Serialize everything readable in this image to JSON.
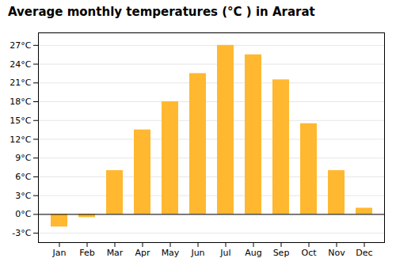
{
  "chart_data": {
    "type": "bar",
    "title": "Average monthly temperatures (°C ) in Ararat",
    "categories": [
      "Jan",
      "Feb",
      "Mar",
      "Apr",
      "May",
      "Jun",
      "Jul",
      "Aug",
      "Sep",
      "Oct",
      "Nov",
      "Dec"
    ],
    "values": [
      -2.0,
      -0.5,
      7.0,
      13.5,
      18.0,
      22.5,
      27.0,
      25.5,
      21.5,
      14.5,
      7.0,
      1.0
    ],
    "color": "#FFB830",
    "ylim": [
      -4.5,
      29
    ],
    "yticks": [
      {
        "value": -3,
        "label": "-3°C"
      },
      {
        "value": 0,
        "label": "0°C"
      },
      {
        "value": 3,
        "label": "3°C"
      },
      {
        "value": 6,
        "label": "6°C"
      },
      {
        "value": 9,
        "label": "9°C"
      },
      {
        "value": 12,
        "label": "12°C"
      },
      {
        "value": 15,
        "label": "15°C"
      },
      {
        "value": 18,
        "label": "18°C"
      },
      {
        "value": 21,
        "label": "21°C"
      },
      {
        "value": 24,
        "label": "24°C"
      },
      {
        "value": 27,
        "label": "27°C"
      }
    ],
    "grid": true
  }
}
